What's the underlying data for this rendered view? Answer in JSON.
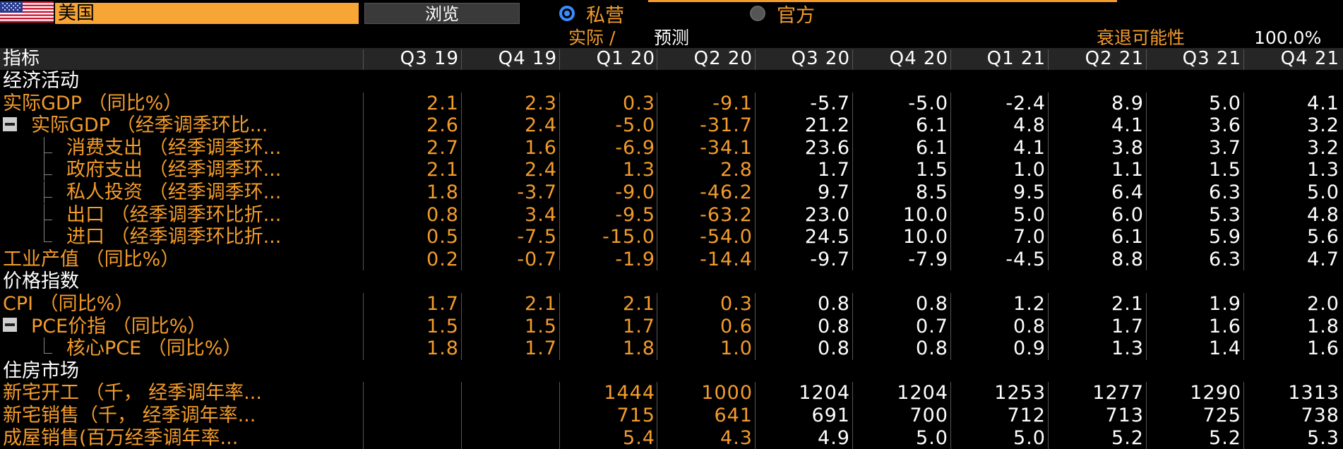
{
  "topbar": {
    "country": "美国",
    "browse_label": "浏览",
    "source_options": [
      {
        "label": "私营",
        "selected": true
      },
      {
        "label": "官方",
        "selected": false
      }
    ]
  },
  "subheader": {
    "actual_label": "实际 /",
    "forecast_label": "预测",
    "recession_label": "衰退可能性",
    "recession_value": "100.0%"
  },
  "table": {
    "indicator_header": "指标",
    "columns": [
      "Q3 19",
      "Q4 19",
      "Q1 20",
      "Q2 20",
      "Q3 20",
      "Q4 20",
      "Q1 21",
      "Q2 21",
      "Q3 21",
      "Q4 21"
    ],
    "actual_column_count": 4,
    "rows": [
      {
        "type": "section",
        "label": "经济活动"
      },
      {
        "type": "data",
        "label": "实际GDP （同比%）",
        "indent": 0,
        "values": [
          "2.1",
          "2.3",
          "0.3",
          "-9.1",
          "-5.7",
          "-5.0",
          "-2.4",
          "8.9",
          "5.0",
          "4.1"
        ]
      },
      {
        "type": "data",
        "label": "实际GDP （经季调季环比...",
        "indent": 0,
        "tree": "collapse",
        "values": [
          "2.6",
          "2.4",
          "-5.0",
          "-31.7",
          "21.2",
          "6.1",
          "4.8",
          "4.1",
          "3.6",
          "3.2"
        ]
      },
      {
        "type": "data",
        "label": "消费支出 （经季调季环...",
        "indent": 1,
        "values": [
          "2.7",
          "1.6",
          "-6.9",
          "-34.1",
          "23.6",
          "6.1",
          "4.1",
          "3.8",
          "3.7",
          "3.2"
        ]
      },
      {
        "type": "data",
        "label": "政府支出 （经季调季环...",
        "indent": 1,
        "values": [
          "2.1",
          "2.4",
          "1.3",
          "2.8",
          "1.7",
          "1.5",
          "1.0",
          "1.1",
          "1.5",
          "1.3"
        ]
      },
      {
        "type": "data",
        "label": "私人投资 （经季调季环...",
        "indent": 1,
        "values": [
          "1.8",
          "-3.7",
          "-9.0",
          "-46.2",
          "9.7",
          "8.5",
          "9.5",
          "6.4",
          "6.3",
          "5.0"
        ]
      },
      {
        "type": "data",
        "label": "出口 （经季调季环比折...",
        "indent": 1,
        "values": [
          "0.8",
          "3.4",
          "-9.5",
          "-63.2",
          "23.0",
          "10.0",
          "5.0",
          "6.0",
          "5.3",
          "4.8"
        ]
      },
      {
        "type": "data",
        "label": "进口 （经季调季环比折...",
        "indent": 1,
        "last": true,
        "values": [
          "0.5",
          "-7.5",
          "-15.0",
          "-54.0",
          "24.5",
          "10.0",
          "7.0",
          "6.1",
          "5.9",
          "5.6"
        ]
      },
      {
        "type": "data",
        "label": "工业产值 （同比%）",
        "indent": 0,
        "values": [
          "0.2",
          "-0.7",
          "-1.9",
          "-14.4",
          "-9.7",
          "-7.9",
          "-4.5",
          "8.8",
          "6.3",
          "4.7"
        ]
      },
      {
        "type": "section",
        "label": "价格指数"
      },
      {
        "type": "data",
        "label": "CPI （同比%）",
        "indent": 0,
        "values": [
          "1.7",
          "2.1",
          "2.1",
          "0.3",
          "0.8",
          "0.8",
          "1.2",
          "2.1",
          "1.9",
          "2.0"
        ]
      },
      {
        "type": "data",
        "label": "PCE价指 （同比%）",
        "indent": 0,
        "tree": "collapse",
        "values": [
          "1.5",
          "1.5",
          "1.7",
          "0.6",
          "0.8",
          "0.7",
          "0.8",
          "1.7",
          "1.6",
          "1.8"
        ]
      },
      {
        "type": "data",
        "label": "核心PCE （同比%）",
        "indent": 1,
        "last": true,
        "values": [
          "1.8",
          "1.7",
          "1.8",
          "1.0",
          "0.8",
          "0.8",
          "0.9",
          "1.3",
          "1.4",
          "1.6"
        ]
      },
      {
        "type": "section",
        "label": "住房市场"
      },
      {
        "type": "data",
        "label": "新宅开工 （千， 经季调年率...",
        "indent": 0,
        "values": [
          "",
          "",
          "1444",
          "1000",
          "1204",
          "1204",
          "1253",
          "1277",
          "1290",
          "1313"
        ]
      },
      {
        "type": "data",
        "label": "新宅销售（千， 经季调年率...",
        "indent": 0,
        "values": [
          "",
          "",
          "715",
          "641",
          "691",
          "700",
          "712",
          "713",
          "725",
          "738"
        ]
      },
      {
        "type": "data",
        "label": "成屋销售(百万经季调年率...",
        "indent": 0,
        "values": [
          "",
          "",
          "5.4",
          "4.3",
          "4.9",
          "5.0",
          "5.0",
          "5.2",
          "5.2",
          "5.3"
        ]
      }
    ]
  },
  "colors": {
    "accent_orange": "#f39c2c",
    "country_bg": "#f7a535",
    "radio_selected": "#3b8cff",
    "header_bg": "#262626",
    "background": "#000000"
  }
}
